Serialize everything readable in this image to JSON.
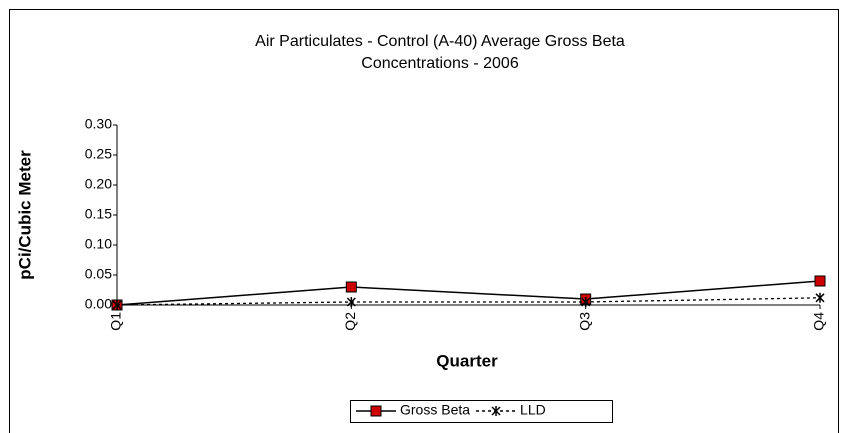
{
  "chart_data": {
    "type": "line",
    "title": [
      "Air Particulates - Control (A-40)  Average Gross Beta",
      "Concentrations - 2006"
    ],
    "x_label": "Quarter",
    "y_label": "pCi/Cubic Meter",
    "categories": [
      "Q1",
      "Q2",
      "Q3",
      "Q4"
    ],
    "series": [
      {
        "name": "Gross Beta",
        "color": "#cc0000",
        "values": [
          0,
          0.03,
          0.01,
          0.04
        ]
      },
      {
        "name": "LLD",
        "color": "#000000",
        "values": [
          0,
          0.005,
          0.005,
          0.012
        ]
      }
    ],
    "ylim": [
      0,
      0.3
    ],
    "yticks": [
      {
        "value": 0,
        "label": "0.00"
      },
      {
        "value": 0.05,
        "label": "0.05"
      },
      {
        "value": 0.1,
        "label": "0.10"
      },
      {
        "value": 0.15,
        "label": "0.15"
      },
      {
        "value": 0.2,
        "label": "0.20"
      },
      {
        "value": 0.25,
        "label": "0.25"
      },
      {
        "value": 0.3,
        "label": "0.30"
      }
    ],
    "grid": false,
    "legend": "bottom"
  }
}
